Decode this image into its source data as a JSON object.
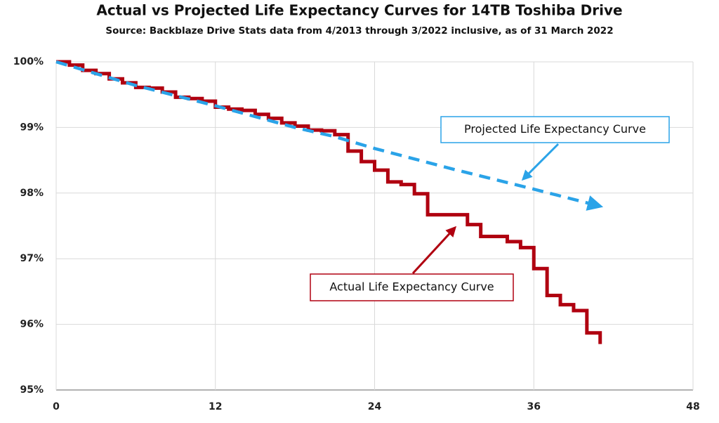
{
  "chart_data": {
    "type": "line",
    "title": "Actual vs Projected  Life Expectancy Curves for 14TB Toshiba Drive",
    "subtitle": "Source: Backblaze Drive Stats data from 4/2013 through 3/2022 inclusive, as of 31 March 2022",
    "xlim": [
      0,
      48
    ],
    "xticks": [
      0,
      12,
      24,
      36,
      48
    ],
    "ylim": [
      95,
      100
    ],
    "yticks": [
      {
        "value": 95,
        "label": "95%"
      },
      {
        "value": 96,
        "label": "96%"
      },
      {
        "value": 97,
        "label": "97%"
      },
      {
        "value": 98,
        "label": "98%"
      },
      {
        "value": 99,
        "label": "99%"
      },
      {
        "value": 100,
        "label": "100%"
      }
    ],
    "grid": true,
    "series": [
      {
        "name": "Actual Life Expectancy Curve",
        "color": "#b00010",
        "style": "step",
        "x": [
          0,
          1,
          2,
          3,
          4,
          5,
          6,
          7,
          8,
          9,
          10,
          11,
          12,
          13,
          14,
          15,
          16,
          17,
          18,
          19,
          20,
          21,
          22,
          23,
          24,
          25,
          26,
          27,
          28,
          29,
          30,
          31,
          32,
          33,
          34,
          35,
          36,
          37,
          38,
          39,
          40,
          41
        ],
        "values": [
          100,
          99.95,
          99.87,
          99.82,
          99.74,
          99.68,
          99.61,
          99.6,
          99.54,
          99.46,
          99.44,
          99.4,
          99.31,
          99.28,
          99.26,
          99.2,
          99.14,
          99.07,
          99.02,
          98.96,
          98.95,
          98.89,
          98.64,
          98.48,
          98.35,
          98.17,
          98.13,
          97.99,
          97.67,
          97.67,
          97.67,
          97.52,
          97.34,
          97.34,
          97.26,
          97.17,
          96.85,
          96.44,
          96.3,
          96.21,
          95.87,
          95.7
        ]
      },
      {
        "name": "Projected Life Expectancy Curve",
        "color": "#2aa3e8",
        "style": "dashed",
        "x": [
          0,
          6,
          12,
          18,
          21,
          24,
          30,
          36,
          41
        ],
        "values": [
          100,
          99.64,
          99.33,
          99.0,
          98.86,
          98.68,
          98.36,
          98.06,
          97.8
        ]
      }
    ]
  }
}
